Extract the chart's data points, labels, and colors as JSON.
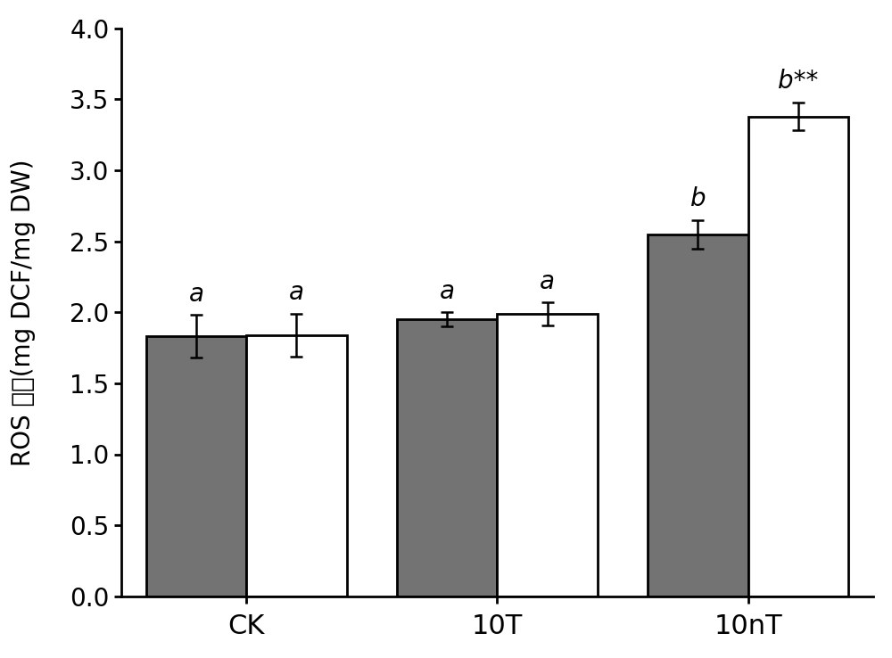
{
  "categories": [
    "CK",
    "10T",
    "10nT"
  ],
  "gray_values": [
    1.83,
    1.95,
    2.55
  ],
  "white_values": [
    1.84,
    1.99,
    3.38
  ],
  "gray_errors": [
    0.15,
    0.05,
    0.1
  ],
  "white_errors": [
    0.15,
    0.08,
    0.1
  ],
  "gray_color": "#737373",
  "white_color": "#ffffff",
  "bar_edge_color": "#000000",
  "bar_width": 0.28,
  "group_positions": [
    0.35,
    1.05,
    1.75
  ],
  "ylim": [
    0.0,
    4.0
  ],
  "yticks": [
    0.0,
    0.5,
    1.0,
    1.5,
    2.0,
    2.5,
    3.0,
    3.5,
    4.0
  ],
  "ylabel_ascii": "ROS ",
  "ylabel_chinese": "含量",
  "ylabel_suffix": "(mg DCF/mg DW)",
  "gray_labels": [
    "a",
    "a",
    "b"
  ],
  "white_labels": [
    "a",
    "a",
    "b**"
  ],
  "label_fontsize": 20,
  "tick_fontsize": 20,
  "ylabel_fontsize": 20,
  "xlabel_fontsize": 22,
  "error_capsize": 5,
  "error_linewidth": 1.8,
  "background_color": "#ffffff",
  "spine_linewidth": 2.0,
  "xlim_left": 0.0,
  "xlim_right": 2.1
}
